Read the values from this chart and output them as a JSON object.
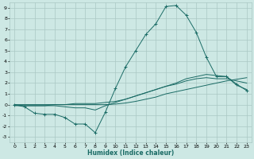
{
  "xlabel": "Humidex (Indice chaleur)",
  "xlim": [
    -0.5,
    23.5
  ],
  "ylim": [
    -3.5,
    9.5
  ],
  "xticks": [
    0,
    1,
    2,
    3,
    4,
    5,
    6,
    7,
    8,
    9,
    10,
    11,
    12,
    13,
    14,
    15,
    16,
    17,
    18,
    19,
    20,
    21,
    22,
    23
  ],
  "yticks": [
    -3,
    -2,
    -1,
    0,
    1,
    2,
    3,
    4,
    5,
    6,
    7,
    8,
    9
  ],
  "bg_color": "#cde8e4",
  "grid_color": "#aac8c4",
  "line_color": "#1a6b65",
  "lines": [
    {
      "x": [
        0,
        1,
        2,
        3,
        4,
        5,
        6,
        7,
        8,
        9,
        10,
        11,
        12,
        13,
        14,
        15,
        16,
        17,
        18,
        19,
        20,
        21,
        22,
        23
      ],
      "y": [
        0,
        -0.2,
        -0.8,
        -0.9,
        -0.9,
        -1.2,
        -1.8,
        -1.8,
        -2.6,
        -0.7,
        1.5,
        3.5,
        5.0,
        6.5,
        7.5,
        9.1,
        9.2,
        8.3,
        6.7,
        4.4,
        2.6,
        2.6,
        1.9,
        1.3
      ],
      "marker": true
    },
    {
      "x": [
        0,
        1,
        2,
        3,
        4,
        5,
        6,
        7,
        8,
        9,
        10,
        11,
        12,
        13,
        14,
        15,
        16,
        17,
        18,
        19,
        20,
        21,
        22,
        23
      ],
      "y": [
        0,
        0,
        0,
        0,
        0,
        0,
        0,
        0,
        0,
        0,
        0.05,
        0.15,
        0.3,
        0.5,
        0.7,
        1.0,
        1.2,
        1.4,
        1.6,
        1.8,
        2.0,
        2.2,
        2.35,
        2.5
      ],
      "marker": false
    },
    {
      "x": [
        0,
        1,
        2,
        3,
        4,
        5,
        6,
        7,
        8,
        9,
        10,
        11,
        12,
        13,
        14,
        15,
        16,
        17,
        18,
        19,
        20,
        21,
        22,
        23
      ],
      "y": [
        -0.1,
        -0.1,
        -0.1,
        -0.1,
        0.0,
        0.0,
        0.1,
        0.1,
        0.1,
        0.2,
        0.3,
        0.5,
        0.8,
        1.1,
        1.4,
        1.7,
        2.0,
        2.4,
        2.6,
        2.8,
        2.7,
        2.6,
        1.8,
        1.4
      ],
      "marker": false
    },
    {
      "x": [
        0,
        1,
        2,
        3,
        4,
        5,
        6,
        7,
        8,
        9,
        10,
        11,
        12,
        13,
        14,
        15,
        16,
        17,
        18,
        19,
        20,
        21,
        22,
        23
      ],
      "y": [
        -0.05,
        -0.1,
        -0.1,
        -0.1,
        -0.1,
        -0.2,
        -0.3,
        -0.3,
        -0.5,
        -0.1,
        0.2,
        0.5,
        0.8,
        1.1,
        1.4,
        1.7,
        1.9,
        2.2,
        2.4,
        2.5,
        2.4,
        2.4,
        2.2,
        2.0
      ],
      "marker": false
    }
  ]
}
